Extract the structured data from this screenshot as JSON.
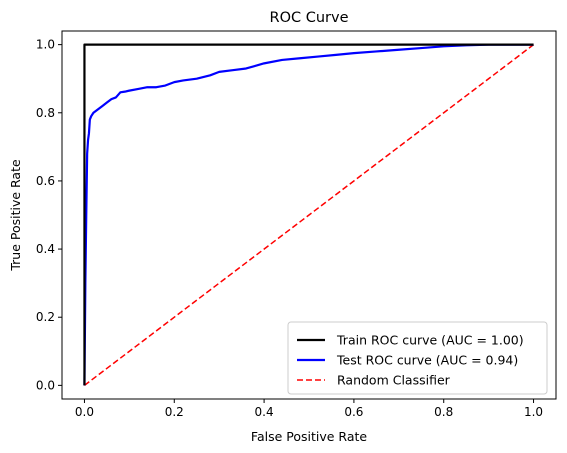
{
  "chart_data": {
    "type": "line",
    "title": "ROC Curve",
    "xlabel": "False Positive Rate",
    "ylabel": "True Positive Rate",
    "xlim": [
      -0.05,
      1.05
    ],
    "ylim": [
      -0.04,
      1.04
    ],
    "xticks": [
      "0.0",
      "0.2",
      "0.4",
      "0.6",
      "0.8",
      "1.0"
    ],
    "yticks": [
      "0.0",
      "0.2",
      "0.4",
      "0.6",
      "0.8",
      "1.0"
    ],
    "grid": false,
    "legend_position": "lower-right",
    "series": [
      {
        "name": "Train ROC curve (AUC = 1.00)",
        "color": "#000000",
        "style": "solid",
        "x": [
          0.0,
          0.0,
          1.0
        ],
        "y": [
          0.0,
          1.0,
          1.0
        ]
      },
      {
        "name": "Test ROC curve (AUC = 0.94)",
        "color": "#0000ff",
        "style": "solid",
        "x": [
          0.0,
          0.002,
          0.004,
          0.006,
          0.008,
          0.01,
          0.012,
          0.015,
          0.02,
          0.03,
          0.04,
          0.05,
          0.06,
          0.07,
          0.08,
          0.09,
          0.1,
          0.12,
          0.14,
          0.16,
          0.18,
          0.2,
          0.22,
          0.25,
          0.28,
          0.3,
          0.33,
          0.36,
          0.4,
          0.44,
          0.48,
          0.52,
          0.56,
          0.6,
          0.65,
          0.7,
          0.75,
          0.8,
          0.85,
          0.9,
          0.95,
          1.0
        ],
        "y": [
          0.0,
          0.3,
          0.5,
          0.68,
          0.72,
          0.74,
          0.78,
          0.79,
          0.8,
          0.81,
          0.82,
          0.83,
          0.84,
          0.845,
          0.86,
          0.862,
          0.865,
          0.87,
          0.875,
          0.875,
          0.88,
          0.89,
          0.895,
          0.9,
          0.91,
          0.92,
          0.925,
          0.93,
          0.945,
          0.955,
          0.96,
          0.965,
          0.97,
          0.975,
          0.98,
          0.985,
          0.99,
          0.995,
          0.998,
          1.0,
          1.0,
          1.0
        ]
      },
      {
        "name": "Random Classifier",
        "color": "#ff0000",
        "style": "dashed",
        "x": [
          0.0,
          1.0
        ],
        "y": [
          0.0,
          1.0
        ]
      }
    ]
  }
}
